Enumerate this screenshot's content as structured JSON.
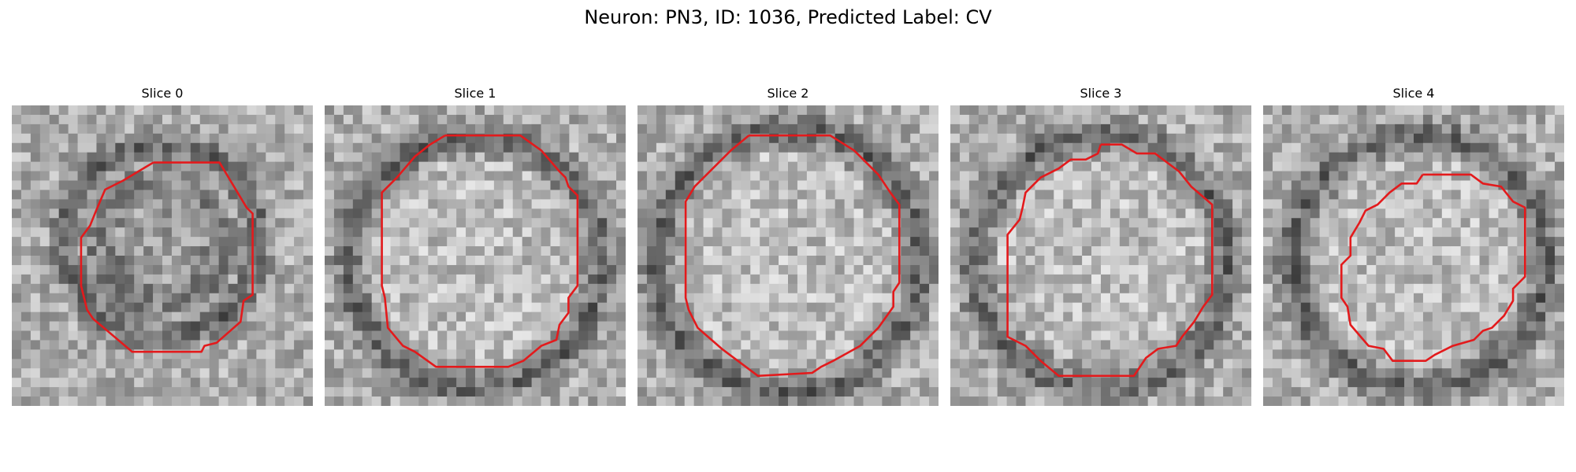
{
  "figure": {
    "title": "Neuron: PN3, ID: 1036, Predicted Label: CV"
  },
  "colors": {
    "contour": "#e31a1c",
    "background": "#ffffff"
  },
  "panels": [
    {
      "title": "Slice 0"
    },
    {
      "title": "Slice 1"
    },
    {
      "title": "Slice 2"
    },
    {
      "title": "Slice 3"
    },
    {
      "title": "Slice 4"
    }
  ]
}
